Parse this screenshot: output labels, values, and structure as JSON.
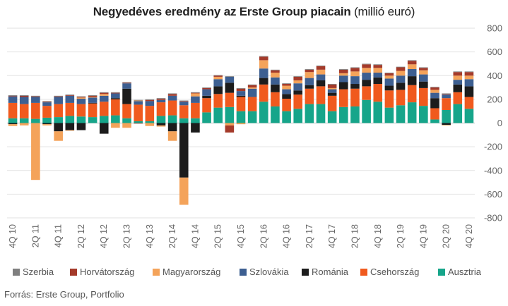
{
  "title": {
    "main": "Negyedéves eredmény az Erste Group piacain",
    "unit": "(millió euró)"
  },
  "source": "Forrás: Erste Group, Portfolio",
  "colors": {
    "Szerbia": "#7f7f7f",
    "Horvátország": "#a43a2a",
    "Magyarország": "#f4a35a",
    "Szlovákia": "#3d5f91",
    "Románia": "#1c1c1c",
    "Csehország": "#f05a1e",
    "Ausztria": "#16a58a"
  },
  "chart_data": {
    "type": "bar",
    "stacked": true,
    "ylim": [
      -800,
      800
    ],
    "yticks": [
      -800,
      -600,
      -400,
      -200,
      0,
      200,
      400,
      600,
      800
    ],
    "ytick_labels": [
      "-800",
      "-600",
      "-400",
      "-200",
      "0",
      "200",
      "400",
      "600",
      "800"
    ],
    "grid": true,
    "legend_position": "bottom",
    "categories": [
      "4Q 10",
      "1Q 11",
      "2Q 11",
      "3Q 11",
      "4Q 11",
      "1Q 12",
      "2Q 12",
      "3Q 12",
      "4Q 12",
      "1Q 13",
      "2Q 13",
      "3Q 13",
      "4Q 13",
      "1Q 14",
      "2Q 14",
      "3Q 14",
      "4Q 14",
      "1Q 15",
      "2Q 15",
      "3Q 15",
      "4Q 15",
      "1Q 16",
      "2Q 16",
      "3Q 16",
      "4Q 16",
      "1Q 17",
      "2Q 17",
      "3Q 17",
      "4Q 17",
      "1Q 18",
      "2Q 18",
      "3Q 18",
      "4Q 18",
      "1Q 19",
      "2Q 19",
      "3Q 19",
      "4Q 19",
      "1Q 20",
      "2Q 20",
      "3Q 20",
      "4Q 20"
    ],
    "xtick_labels": [
      "4Q 10",
      "2Q 11",
      "4Q 11",
      "2Q 12",
      "4Q 12",
      "2Q 13",
      "4Q 13",
      "2Q 14",
      "4Q 14",
      "2Q 15",
      "4Q 15",
      "2Q 16",
      "4Q 16",
      "2Q 17",
      "4Q 17",
      "2Q 18",
      "4Q 18",
      "2Q 19",
      "4Q 19",
      "2Q 20",
      "4Q 20"
    ],
    "series": [
      {
        "name": "Ausztria",
        "values": [
          40,
          40,
          35,
          45,
          50,
          60,
          55,
          50,
          60,
          65,
          40,
          15,
          15,
          60,
          65,
          40,
          40,
          90,
          130,
          135,
          100,
          100,
          180,
          140,
          100,
          120,
          160,
          160,
          100,
          135,
          140,
          195,
          180,
          130,
          150,
          175,
          145,
          30,
          110,
          160,
          120
        ]
      },
      {
        "name": "Csehország",
        "values": [
          130,
          120,
          135,
          100,
          110,
          110,
          105,
          115,
          120,
          135,
          120,
          140,
          130,
          115,
          125,
          110,
          130,
          120,
          115,
          120,
          120,
          120,
          145,
          120,
          105,
          120,
          130,
          150,
          130,
          150,
          150,
          115,
          150,
          145,
          130,
          145,
          150,
          95,
          100,
          100,
          100
        ]
      },
      {
        "name": "Románia",
        "values": [
          -10,
          0,
          0,
          -10,
          -70,
          -60,
          -60,
          5,
          -90,
          10,
          130,
          0,
          0,
          -20,
          -70,
          -460,
          -80,
          20,
          65,
          85,
          10,
          0,
          55,
          65,
          40,
          35,
          30,
          50,
          25,
          60,
          40,
          55,
          55,
          40,
          60,
          75,
          55,
          85,
          -15,
          65,
          90
        ]
      },
      {
        "name": "Szlovákia",
        "values": [
          55,
          60,
          50,
          30,
          60,
          60,
          45,
          45,
          50,
          40,
          45,
          30,
          40,
          20,
          40,
          30,
          55,
          55,
          60,
          50,
          40,
          70,
          80,
          60,
          40,
          60,
          60,
          50,
          30,
          55,
          65,
          60,
          40,
          60,
          60,
          60,
          60,
          45,
          30,
          40,
          60
        ]
      },
      {
        "name": "Magyarország",
        "values": [
          -15,
          -20,
          -480,
          -10,
          -80,
          -5,
          10,
          5,
          15,
          -40,
          -40,
          5,
          -25,
          -10,
          -80,
          -230,
          25,
          0,
          20,
          -20,
          -10,
          10,
          70,
          40,
          30,
          25,
          50,
          40,
          10,
          20,
          40,
          40,
          40,
          25,
          40,
          40,
          35,
          25,
          -5,
          35,
          30
        ]
      },
      {
        "name": "Horvátország",
        "values": [
          5,
          10,
          5,
          5,
          5,
          5,
          5,
          10,
          10,
          5,
          5,
          -5,
          10,
          10,
          15,
          5,
          5,
          10,
          10,
          -60,
          20,
          20,
          30,
          20,
          15,
          30,
          20,
          30,
          30,
          30,
          30,
          30,
          25,
          20,
          30,
          30,
          20,
          20,
          5,
          30,
          30
        ]
      },
      {
        "name": "Szerbia",
        "values": [
          5,
          5,
          5,
          5,
          5,
          5,
          5,
          5,
          5,
          5,
          5,
          5,
          5,
          5,
          5,
          5,
          5,
          5,
          5,
          5,
          5,
          5,
          5,
          5,
          5,
          5,
          5,
          5,
          5,
          5,
          5,
          5,
          5,
          5,
          5,
          5,
          5,
          5,
          5,
          5,
          5
        ]
      }
    ],
    "legend_order": [
      "Szerbia",
      "Horvátország",
      "Magyarország",
      "Szlovákia",
      "Románia",
      "Csehország",
      "Ausztria"
    ]
  }
}
